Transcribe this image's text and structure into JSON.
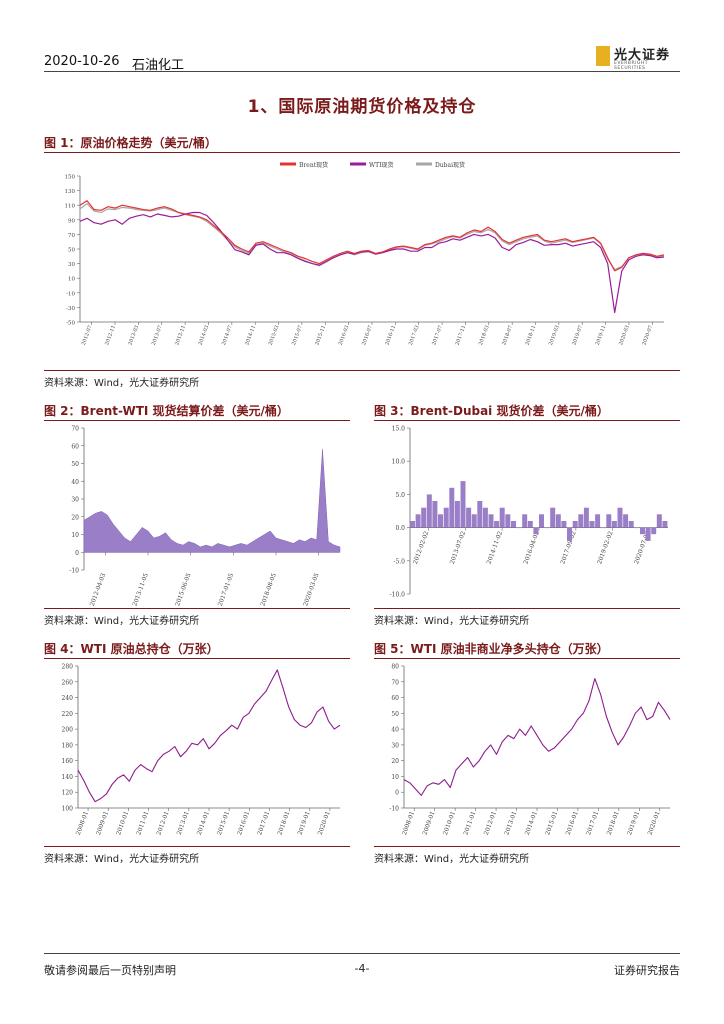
{
  "header": {
    "date": "2020-10-26",
    "sector": "石油化工",
    "logo_cn": "光大证券",
    "logo_en": "EVERBRIGHT SECURITIES"
  },
  "section_title": "1、国际原油期货价格及持仓",
  "source_text": "资料来源：Wind，光大证券研究所",
  "footer": {
    "left": "敬请参阅最后一页特别声明",
    "center": "-4-",
    "right": "证券研究报告"
  },
  "colors": {
    "brent": "#e53131",
    "wti": "#9b1b9b",
    "dubai": "#a7a7a7",
    "bar": "#9a7fc8",
    "purple": "#8e1c8e"
  },
  "charts": {
    "fig1": {
      "title": "图 1：原油价格走势（美元/桶）",
      "chart_data": {
        "type": "line",
        "legend": [
          "Brent现货",
          "WTI现货",
          "Dubai现货"
        ],
        "y_ticks": [
          "150",
          "130",
          "110",
          "90",
          "70",
          "50",
          "30",
          "10",
          "-10",
          "-30",
          "-50"
        ],
        "ylim": [
          -50,
          150
        ],
        "x_ticks": [
          "2012-07",
          "2012-11",
          "2013-03",
          "2013-07",
          "2013-11",
          "2014-03",
          "2014-07",
          "2014-11",
          "2015-03",
          "2015-07",
          "2015-11",
          "2016-03",
          "2016-07",
          "2016-11",
          "2017-03",
          "2017-07",
          "2017-11",
          "2018-03",
          "2018-07",
          "2018-11",
          "2019-03",
          "2019-07",
          "2019-11",
          "2020-03",
          "2020-07"
        ],
        "series": [
          {
            "name": "Brent现货",
            "values": [
              110,
              116,
              104,
              103,
              108,
              106,
              110,
              108,
              106,
              104,
              103,
              106,
              108,
              105,
              100,
              98,
              96,
              94,
              90,
              82,
              74,
              65,
              55,
              50,
              46,
              58,
              60,
              56,
              52,
              48,
              45,
              40,
              37,
              33,
              30,
              35,
              40,
              44,
              47,
              44,
              47,
              48,
              44,
              46,
              50,
              53,
              54,
              52,
              50,
              56,
              58,
              62,
              66,
              68,
              66,
              72,
              76,
              74,
              80,
              74,
              63,
              58,
              62,
              66,
              68,
              70,
              62,
              60,
              62,
              64,
              60,
              62,
              64,
              66,
              58,
              38,
              20,
              25,
              38,
              42,
              44,
              43,
              40,
              42
            ]
          },
          {
            "name": "WTI现货",
            "values": [
              88,
              92,
              86,
              84,
              88,
              90,
              84,
              92,
              95,
              97,
              94,
              98,
              96,
              94,
              95,
              98,
              100,
              100,
              96,
              86,
              75,
              62,
              49,
              46,
              42,
              55,
              57,
              50,
              45,
              45,
              42,
              37,
              33,
              30,
              28,
              33,
              38,
              42,
              45,
              43,
              46,
              47,
              43,
              45,
              48,
              50,
              50,
              47,
              47,
              52,
              52,
              58,
              60,
              64,
              62,
              66,
              70,
              68,
              70,
              65,
              52,
              48,
              56,
              59,
              63,
              60,
              55,
              56,
              56,
              58,
              54,
              56,
              58,
              60,
              52,
              30,
              -37,
              20,
              35,
              40,
              42,
              41,
              38,
              39
            ]
          },
          {
            "name": "Dubai现货",
            "values": [
              105,
              112,
              102,
              100,
              105,
              104,
              107,
              106,
              104,
              103,
              102,
              104,
              106,
              103,
              100,
              97,
              95,
              93,
              88,
              80,
              72,
              62,
              53,
              48,
              44,
              56,
              58,
              54,
              50,
              46,
              43,
              38,
              34,
              30,
              27,
              32,
              38,
              42,
              45,
              42,
              45,
              46,
              43,
              45,
              49,
              52,
              53,
              51,
              49,
              55,
              57,
              60,
              64,
              67,
              65,
              70,
              74,
              72,
              77,
              72,
              61,
              56,
              60,
              64,
              66,
              68,
              61,
              58,
              60,
              62,
              59,
              61,
              63,
              65,
              57,
              36,
              22,
              26,
              38,
              42,
              43,
              42,
              39,
              41
            ]
          }
        ]
      }
    },
    "fig2": {
      "title": "图 2：Brent-WTI 现货结算价差（美元/桶）",
      "chart_data": {
        "type": "area",
        "y_ticks": [
          "70",
          "60",
          "50",
          "40",
          "30",
          "20",
          "10",
          "0",
          "-10"
        ],
        "ylim": [
          -10,
          70
        ],
        "x_ticks": [
          "2012-04-03",
          "2013-11-05",
          "2015-06-05",
          "2017-01-05",
          "2018-08-05",
          "2020-03-05"
        ],
        "values": [
          18,
          20,
          22,
          23,
          21,
          16,
          12,
          8,
          6,
          10,
          14,
          12,
          8,
          9,
          11,
          7,
          5,
          4,
          6,
          5,
          3,
          4,
          3,
          5,
          4,
          3,
          4,
          5,
          4,
          6,
          8,
          10,
          12,
          8,
          7,
          6,
          5,
          7,
          6,
          8,
          7,
          58,
          6,
          4,
          3
        ]
      }
    },
    "fig3": {
      "title": "图 3：Brent-Dubai 现货价差（美元/桶）",
      "chart_data": {
        "type": "bar",
        "y_ticks": [
          "15.0",
          "10.0",
          "5.0",
          "0.0",
          "-5.0",
          "-10.0"
        ],
        "ylim": [
          -10,
          15
        ],
        "x_ticks": [
          "2012-02-02",
          "2013-07-02",
          "2014-11-02",
          "2016-04-02",
          "2017-09-02",
          "2019-02-02",
          "2020-07-02"
        ],
        "values": [
          1,
          2,
          3,
          5,
          4,
          2,
          3,
          6,
          4,
          7,
          3,
          2,
          4,
          3,
          2,
          1,
          3,
          2,
          1,
          0,
          2,
          1,
          -1,
          2,
          0,
          3,
          2,
          1,
          -2,
          1,
          2,
          3,
          1,
          2,
          0,
          2,
          1,
          3,
          2,
          1,
          0,
          -1,
          -2,
          -1,
          2,
          1
        ]
      }
    },
    "fig4": {
      "title": "图 4：WTI 原油总持仓（万张）",
      "chart_data": {
        "type": "line",
        "y_ticks": [
          "280",
          "260",
          "240",
          "220",
          "200",
          "180",
          "160",
          "140",
          "120",
          "100"
        ],
        "ylim": [
          100,
          280
        ],
        "x_ticks": [
          "2008-01",
          "2009-01",
          "2010-01",
          "2011-01",
          "2012-01",
          "2013-01",
          "2014-01",
          "2015-01",
          "2016-01",
          "2017-01",
          "2018-01",
          "2019-01",
          "2020-01"
        ],
        "values": [
          148,
          135,
          120,
          108,
          112,
          118,
          130,
          138,
          142,
          134,
          148,
          155,
          150,
          146,
          160,
          168,
          172,
          178,
          165,
          172,
          182,
          180,
          188,
          175,
          182,
          192,
          198,
          205,
          200,
          215,
          220,
          232,
          240,
          248,
          262,
          275,
          252,
          228,
          212,
          205,
          202,
          208,
          222,
          228,
          210,
          200,
          205
        ]
      }
    },
    "fig5": {
      "title": "图 5：WTI 原油非商业净多头持仓（万张）",
      "chart_data": {
        "type": "line",
        "y_ticks": [
          "80",
          "70",
          "60",
          "50",
          "40",
          "30",
          "20",
          "10",
          "0",
          "-10"
        ],
        "ylim": [
          -10,
          80
        ],
        "x_ticks": [
          "2008-01",
          "2009-01",
          "2010-01",
          "2011-01",
          "2012-01",
          "2013-01",
          "2014-01",
          "2015-01",
          "2016-01",
          "2017-01",
          "2018-01",
          "2019-01",
          "2020-01"
        ],
        "values": [
          8,
          6,
          2,
          -2,
          4,
          6,
          5,
          8,
          3,
          14,
          18,
          22,
          16,
          20,
          26,
          30,
          24,
          32,
          36,
          34,
          40,
          36,
          42,
          36,
          30,
          26,
          28,
          32,
          36,
          40,
          46,
          50,
          58,
          72,
          62,
          48,
          38,
          30,
          35,
          42,
          50,
          54,
          46,
          48,
          57,
          52,
          46
        ]
      }
    }
  }
}
